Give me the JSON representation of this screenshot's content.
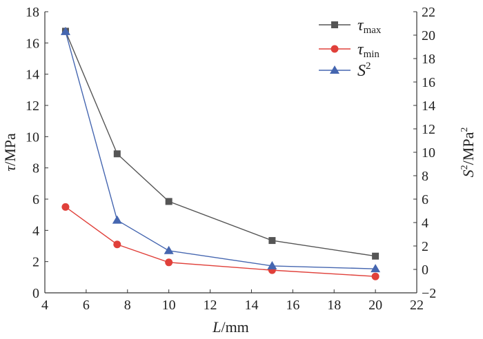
{
  "chart_data": {
    "type": "line",
    "x_axis": {
      "label_symbol": "L",
      "label_unit": "/mm",
      "range": [
        4,
        22
      ],
      "ticks": [
        "4",
        "6",
        "8",
        "10",
        "12",
        "14",
        "16",
        "18",
        "20",
        "22"
      ]
    },
    "y_left": {
      "label_symbol": "τ",
      "label_unit": "/MPa",
      "range": [
        0,
        18
      ],
      "ticks": [
        "0",
        "2",
        "4",
        "6",
        "8",
        "10",
        "12",
        "14",
        "16",
        "18"
      ]
    },
    "y_right": {
      "label_symbol": "S",
      "label_sup": "2",
      "label_unit": "/MPa",
      "label_unit_sup": "2",
      "range": [
        -2,
        22
      ],
      "ticks": [
        "−2",
        "0",
        "2",
        "4",
        "6",
        "8",
        "10",
        "12",
        "14",
        "16",
        "18",
        "20",
        "22"
      ]
    },
    "grid": false,
    "legend_position": "top-right",
    "series": [
      {
        "name": "τ",
        "name_sub": "max",
        "axis": "left",
        "color": "#555555",
        "line_color": "#555555",
        "marker": "square",
        "x": [
          5,
          7.5,
          10,
          15,
          20
        ],
        "y": [
          16.75,
          8.9,
          5.85,
          3.35,
          2.35
        ]
      },
      {
        "name": "τ",
        "name_sub": "min",
        "axis": "left",
        "color": "#e0403a",
        "line_color": "#e0403a",
        "marker": "circle",
        "x": [
          5,
          7.5,
          10,
          15,
          20
        ],
        "y": [
          5.5,
          3.1,
          1.95,
          1.45,
          1.05
        ]
      },
      {
        "name": "S",
        "name_sup": "2",
        "axis": "right",
        "color": "#4566b0",
        "line_color": "#4566b0",
        "marker": "triangle",
        "x": [
          5,
          7.5,
          10,
          15,
          20
        ],
        "y": [
          20.3,
          4.2,
          1.6,
          0.3,
          0.05
        ]
      }
    ]
  }
}
